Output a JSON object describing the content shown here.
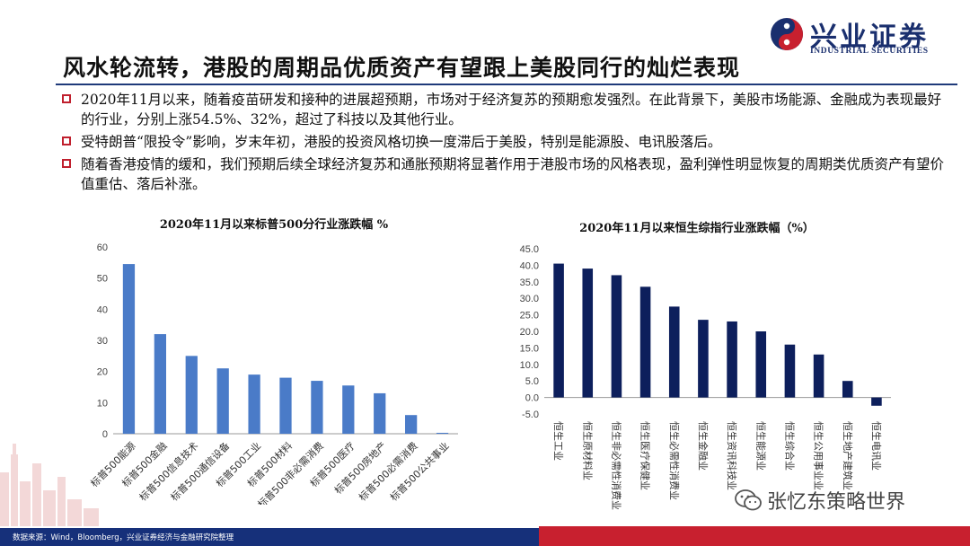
{
  "slide": {
    "title": "风水轮流转，港股的周期品优质资产有望跟上美股同行的灿烂表现",
    "bullets": [
      "2020年11月以来，随着疫苗研发和接种的进展超预期，市场对于经济复苏的预期愈发强烈。在此背景下，美股市场能源、金融成为表现最好的行业，分别上涨54.5%、32%，超过了科技以及其他行业。",
      "受特朗普“限投令”影响，岁末年初，港股的投资风格切换一度滞后于美股，特别是能源股、电讯股落后。",
      "随着香港疫情的缓和，我们预期后续全球经济复苏和通胀预期将显著作用于港股市场的风格表现，盈利弹性明显恢复的周期类优质资产有望价值重估、落后补涨。"
    ]
  },
  "logo": {
    "name_cn": "兴业证券",
    "name_en": "INDUSTRIAL SECURITIES",
    "colors": {
      "navy": "#1a2f6e",
      "red": "#c8202f"
    }
  },
  "chart_data": [
    {
      "type": "bar",
      "title": "2020年11月以来标普500分行业涨跌幅 %",
      "categories": [
        "标普500能源",
        "标普500金融",
        "标普500信息技术",
        "标普500通信设备",
        "标普500工业",
        "标普500材料",
        "标普500非必需消费",
        "标普500医疗",
        "标普500房地产",
        "标普500必需消费",
        "标普500公共事业"
      ],
      "values": [
        54.5,
        32,
        25,
        21,
        19,
        18,
        17,
        15.5,
        13,
        6,
        0.3
      ],
      "ylim": [
        0,
        60
      ],
      "yticks": [
        "0",
        "10",
        "20",
        "30",
        "40",
        "50",
        "60"
      ],
      "color": "#4a7bc8",
      "grid": false
    },
    {
      "type": "bar",
      "title": "2020年11月以来恒生综指行业涨跌幅（%）",
      "categories": [
        "恒生工业",
        "恒生原材料业",
        "恒生非必需性消费业",
        "恒生医疗保健业",
        "恒生必需性消费业",
        "恒生金融业",
        "恒生资讯科技业",
        "恒生能源业",
        "恒生综合业",
        "恒生公用事业业",
        "恒生地产建筑业",
        "恒生电讯业"
      ],
      "values": [
        40.5,
        39,
        37,
        33.5,
        27.5,
        23.5,
        23,
        20,
        16,
        13,
        5,
        -2.5
      ],
      "ylim": [
        -5,
        45
      ],
      "yticks": [
        "-5.0",
        "0.0",
        "5.0",
        "10.0",
        "15.0",
        "20.0",
        "25.0",
        "30.0",
        "35.0",
        "40.0",
        "45.0"
      ],
      "color": "#0d1f5c",
      "grid": false
    }
  ],
  "footer": {
    "source": "数据来源：Wind，Bloomberg，兴业证券经济与金融研究院整理"
  },
  "watermark": {
    "text": "张忆东策略世界"
  }
}
